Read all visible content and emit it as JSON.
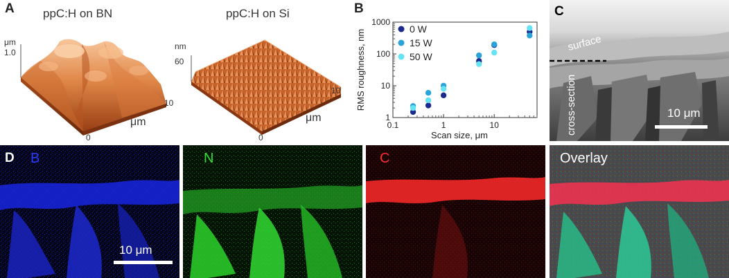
{
  "panel_a": {
    "letter": "A",
    "left_title": "ppC:H on BN",
    "right_title": "ppC:H on Si",
    "left_z_unit": "μm",
    "left_z_max": "1.0",
    "right_z_unit": "nm",
    "right_z_max": "60",
    "axis_ten": "10",
    "axis_unit": "μm",
    "axis_zero": "0",
    "colors": {
      "surface_light": "#f6b98a",
      "surface_mid": "#d9733c",
      "surface_dark": "#7a2e0f"
    }
  },
  "panel_b": {
    "letter": "B"
  },
  "chart_data": {
    "type": "scatter",
    "xlabel": "Scan size, μm",
    "ylabel": "RMS roughness, nm",
    "x_scale": "log",
    "y_scale": "log",
    "xlim": [
      0.1,
      70
    ],
    "ylim": [
      1,
      1000
    ],
    "x_ticks": [
      "0.1",
      "1",
      "10"
    ],
    "y_ticks": [
      "1",
      "10",
      "100",
      "1000"
    ],
    "legend_position": "top-left",
    "series": [
      {
        "name": "0 W",
        "color": "#1b2a8c",
        "x": [
          0.25,
          0.5,
          1,
          5,
          10,
          50
        ],
        "y": [
          1.5,
          2.4,
          5,
          60,
          190,
          500
        ]
      },
      {
        "name": "15 W",
        "color": "#2aa3d9",
        "x": [
          0.25,
          0.5,
          1,
          5,
          10,
          50
        ],
        "y": [
          2.3,
          6,
          10,
          90,
          200,
          380
        ]
      },
      {
        "name": "50 W",
        "color": "#66e3f2",
        "x": [
          0.25,
          0.5,
          1,
          5,
          10,
          50
        ],
        "y": [
          2,
          3.5,
          8,
          48,
          110,
          650
        ]
      }
    ]
  },
  "panel_c": {
    "letter": "C",
    "surface_label": "surface",
    "cross_section_label": "cross-section",
    "scale_bar_label": "10 μm"
  },
  "panel_d": {
    "letter": "D",
    "scale_bar_label": "10 μm",
    "maps": [
      {
        "label": "B",
        "color": "#2233ff"
      },
      {
        "label": "N",
        "color": "#33dd33"
      },
      {
        "label": "C",
        "color": "#ff2222"
      },
      {
        "label": "Overlay",
        "color": "#ffffff"
      }
    ]
  }
}
